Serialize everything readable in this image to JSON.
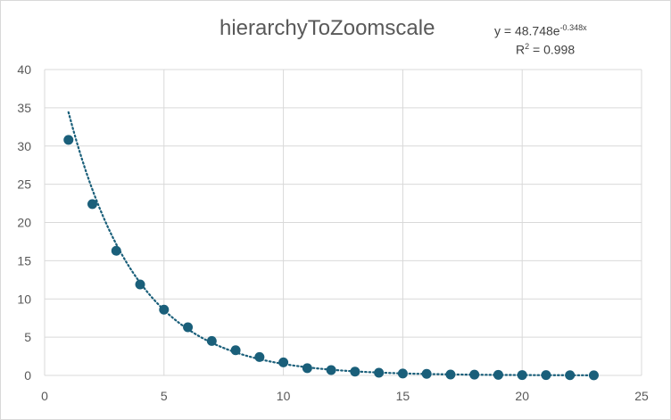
{
  "chart_data": {
    "type": "scatter",
    "title": "hierarchyToZoomscale",
    "xlabel": "",
    "ylabel": "",
    "xlim": [
      0,
      25
    ],
    "ylim": [
      0,
      40
    ],
    "x_ticks": [
      "0",
      "5",
      "10",
      "15",
      "20",
      "25"
    ],
    "y_ticks": [
      "0",
      "5",
      "10",
      "15",
      "20",
      "25",
      "30",
      "35",
      "40"
    ],
    "grid": true,
    "legend": "none",
    "marker_color": "#1a5f7a",
    "x": [
      1,
      2,
      3,
      4,
      5,
      6,
      7,
      8,
      9,
      10,
      11,
      12,
      13,
      14,
      15,
      16,
      17,
      18,
      19,
      20,
      21,
      22,
      23
    ],
    "y": [
      30.8,
      22.4,
      16.3,
      11.9,
      8.6,
      6.3,
      4.5,
      3.3,
      2.4,
      1.7,
      0.95,
      0.7,
      0.5,
      0.35,
      0.25,
      0.2,
      0.12,
      0.1,
      0.08,
      0.05,
      0.04,
      0.03,
      0.02
    ],
    "trendline": {
      "type": "exponential",
      "a": 48.748,
      "b": -0.348,
      "x_range": [
        1,
        23
      ],
      "style": "dotted",
      "color": "#1a5f7a",
      "equation_prefix": "y = 48.748e",
      "equation_exponent": "-0.348x",
      "r2_prefix": "R",
      "r2_exponent": "2",
      "r2_suffix": " = 0.998"
    }
  }
}
